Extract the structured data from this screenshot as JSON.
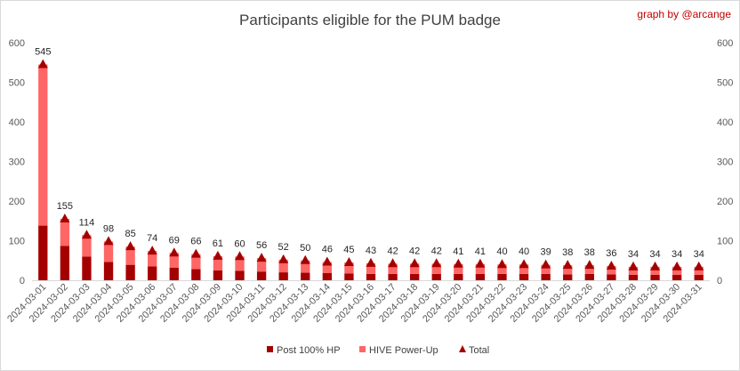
{
  "chart_data": {
    "type": "bar",
    "title": "Participants eligible for the PUM badge",
    "credit": "graph by @arcange",
    "categories": [
      "2024-03-01",
      "2024-03-02",
      "2024-03-03",
      "2024-03-04",
      "2024-03-05",
      "2024-03-06",
      "2024-03-07",
      "2024-03-08",
      "2024-03-09",
      "2024-03-10",
      "2024-03-11",
      "2024-03-12",
      "2024-03-13",
      "2024-03-14",
      "2024-03-15",
      "2024-03-16",
      "2024-03-17",
      "2024-03-18",
      "2024-03-19",
      "2024-03-20",
      "2024-03-21",
      "2024-03-22",
      "2024-03-23",
      "2024-03-24",
      "2024-03-25",
      "2024-03-26",
      "2024-03-27",
      "2024-03-28",
      "2024-03-29",
      "2024-03-30",
      "2024-03-31"
    ],
    "series": [
      {
        "name": "Post 100% HP",
        "type": "stacked-bar",
        "color": "#a50000",
        "values": [
          138,
          87,
          60,
          46,
          39,
          35,
          32,
          28,
          25,
          24,
          22,
          20,
          19,
          18,
          17,
          16,
          16,
          16,
          16,
          16,
          16,
          16,
          16,
          16,
          15,
          16,
          15,
          14,
          14,
          14,
          14
        ]
      },
      {
        "name": "HIVE Power-Up",
        "type": "stacked-bar",
        "color": "#ff6666",
        "values": [
          407,
          68,
          54,
          52,
          46,
          39,
          37,
          38,
          36,
          36,
          34,
          32,
          31,
          28,
          28,
          27,
          26,
          26,
          26,
          25,
          25,
          24,
          24,
          23,
          23,
          22,
          21,
          20,
          20,
          20,
          20
        ]
      },
      {
        "name": "Total",
        "type": "marker",
        "color": "#a50000",
        "values": [
          545,
          155,
          114,
          98,
          85,
          74,
          69,
          66,
          61,
          60,
          56,
          52,
          50,
          46,
          45,
          43,
          42,
          42,
          42,
          41,
          41,
          40,
          40,
          39,
          38,
          38,
          36,
          34,
          34,
          34,
          34
        ]
      }
    ],
    "ylim": [
      0,
      600
    ],
    "yticks": [
      0,
      100,
      200,
      300,
      400,
      500,
      600
    ],
    "secondary_axis": true,
    "grid": false,
    "legend_position": "bottom"
  }
}
